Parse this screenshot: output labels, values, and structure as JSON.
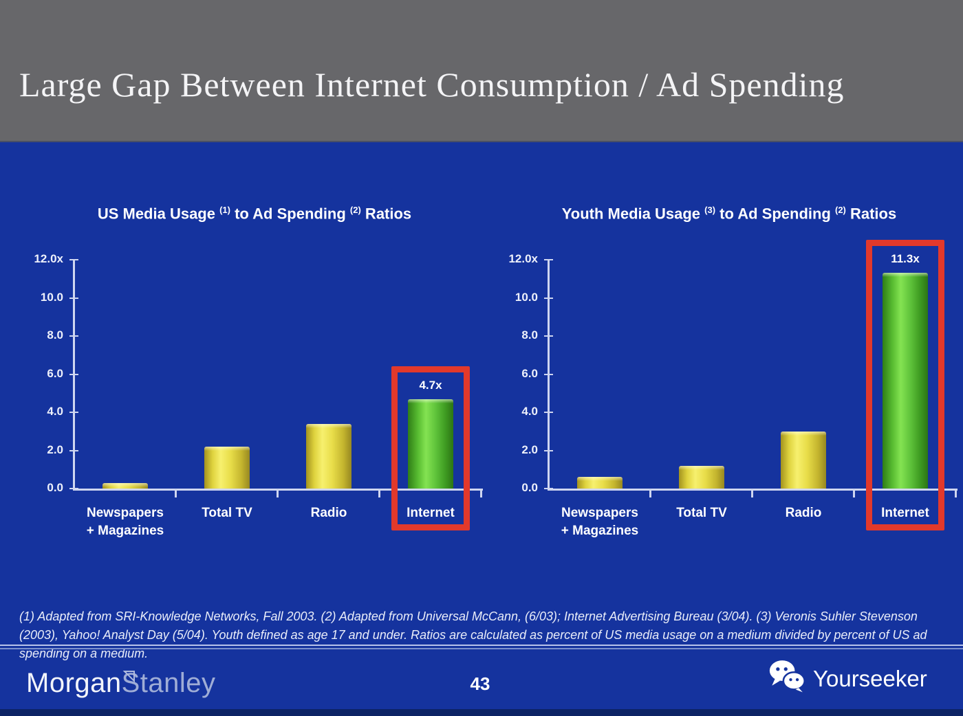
{
  "header": {
    "title": "Large Gap Between Internet Consumption / Ad Spending"
  },
  "chart_data": [
    {
      "type": "bar",
      "title": "US Media Usage (1) to Ad Spending (2) Ratios",
      "title_parts": [
        {
          "text": "US Media Usage "
        },
        {
          "sup": "(1)"
        },
        {
          "text": " to Ad Spending "
        },
        {
          "sup": "(2)"
        },
        {
          "text": " Ratios"
        }
      ],
      "categories": [
        [
          "Newspapers",
          "+ Magazines"
        ],
        [
          "Total TV"
        ],
        [
          "Radio"
        ],
        [
          "Internet"
        ]
      ],
      "values": [
        0.3,
        2.2,
        3.4,
        4.7
      ],
      "bar_labels": [
        "",
        "",
        "",
        "4.7x"
      ],
      "highlight_index": 3,
      "xlabel": "",
      "ylabel": "",
      "ylim": [
        0,
        12
      ],
      "yticks": [
        {
          "label": "12.0x",
          "value": 12
        },
        {
          "label": "10.0",
          "value": 10
        },
        {
          "label": "8.0",
          "value": 8
        },
        {
          "label": "6.0",
          "value": 6
        },
        {
          "label": "4.0",
          "value": 4
        },
        {
          "label": "2.0",
          "value": 2
        },
        {
          "label": "0.0",
          "value": 0
        }
      ],
      "grid": false,
      "legend": false,
      "bar_color": "#E8DE4A",
      "highlight_bar_color": "#5FC437"
    },
    {
      "type": "bar",
      "title": "Youth Media Usage (3) to Ad Spending (2) Ratios",
      "title_parts": [
        {
          "text": "Youth Media Usage "
        },
        {
          "sup": "(3)"
        },
        {
          "text": " to Ad Spending "
        },
        {
          "sup": "(2)"
        },
        {
          "text": " Ratios"
        }
      ],
      "categories": [
        [
          "Newspapers",
          "+ Magazines"
        ],
        [
          "Total TV"
        ],
        [
          "Radio"
        ],
        [
          "Internet"
        ]
      ],
      "values": [
        0.6,
        1.2,
        3.0,
        11.3
      ],
      "bar_labels": [
        "",
        "",
        "",
        "11.3x"
      ],
      "highlight_index": 3,
      "xlabel": "",
      "ylabel": "",
      "ylim": [
        0,
        12
      ],
      "yticks": [
        {
          "label": "12.0x",
          "value": 12
        },
        {
          "label": "10.0",
          "value": 10
        },
        {
          "label": "8.0",
          "value": 8
        },
        {
          "label": "6.0",
          "value": 6
        },
        {
          "label": "4.0",
          "value": 4
        },
        {
          "label": "2.0",
          "value": 2
        },
        {
          "label": "0.0",
          "value": 0
        }
      ],
      "grid": false,
      "legend": false,
      "bar_color": "#E8DE4A",
      "highlight_bar_color": "#5FC437"
    }
  ],
  "footnote": {
    "text": "(1) Adapted from SRI-Knowledge Networks, Fall 2003.  (2) Adapted from Universal McCann, (6/03); Internet Advertising Bureau (3/04). (3) Veronis Suhler Stevenson (2003), Yahoo! Analyst Day (5/04).  Youth defined as age 17 and under.  Ratios are calculated as percent of US media usage on a medium divided by percent of US ad spending on a medium."
  },
  "footer": {
    "page_number": "43",
    "brand": {
      "word1": "Morgan",
      "word2": "Stanley"
    },
    "watermark": {
      "label": "Yourseeker",
      "icon": "wechat-icon"
    }
  },
  "colors": {
    "header_gray": "#67676A",
    "slide_blue": "#15339E",
    "bottom_strip_navy": "#0D2365",
    "highlight_red": "#E2392B",
    "bar_yellow": "#E8DE4A",
    "bar_green": "#5FC437",
    "axis_line": "#CFD6F0"
  }
}
